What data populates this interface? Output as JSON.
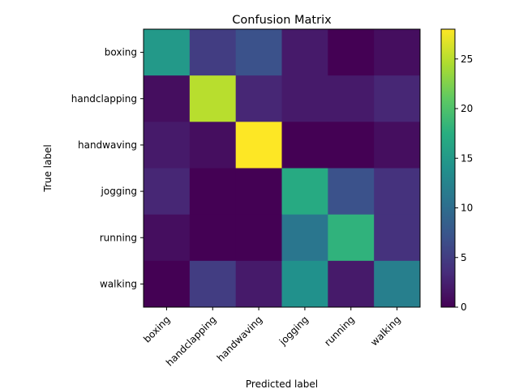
{
  "chart_data": {
    "type": "heatmap",
    "title": "Confusion Matrix",
    "xlabel": "Predicted label",
    "ylabel": "True label",
    "x_categories": [
      "boxing",
      "handclapping",
      "handwaving",
      "jogging",
      "running",
      "walking"
    ],
    "y_categories": [
      "boxing",
      "handclapping",
      "handwaving",
      "jogging",
      "running",
      "walking"
    ],
    "values": [
      [
        15,
        5,
        7,
        2,
        0,
        1
      ],
      [
        1,
        25,
        3,
        2,
        2,
        3
      ],
      [
        2,
        1,
        28,
        0,
        0,
        1
      ],
      [
        3,
        0,
        0,
        17,
        7,
        4
      ],
      [
        1,
        0,
        0,
        11,
        18,
        4
      ],
      [
        0,
        5,
        2,
        14,
        2,
        12
      ]
    ],
    "colorbar": {
      "vmin": 0,
      "vmax": 28,
      "ticks": [
        0,
        5,
        10,
        15,
        20,
        25
      ],
      "colormap": "viridis"
    },
    "grid": false
  }
}
